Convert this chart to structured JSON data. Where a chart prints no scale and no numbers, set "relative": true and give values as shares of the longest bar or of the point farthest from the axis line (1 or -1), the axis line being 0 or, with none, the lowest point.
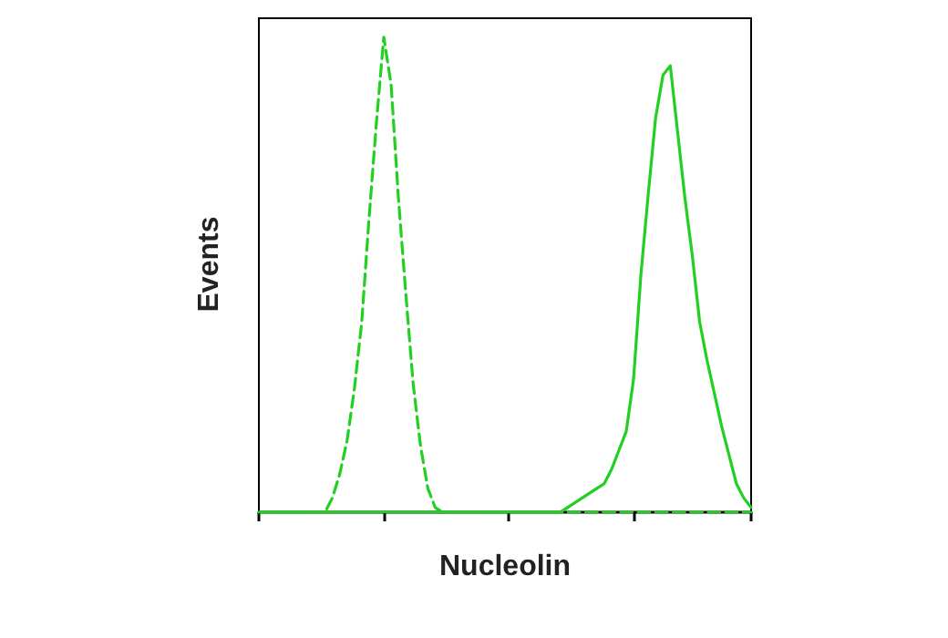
{
  "chart_data": {
    "type": "line",
    "relative": true,
    "xlabel": "Nucleolin",
    "ylabel": "Events",
    "categories": [
      null,
      null,
      null,
      null,
      null,
      null,
      null,
      null,
      null,
      null,
      null,
      null,
      null,
      null,
      null,
      null,
      null,
      null,
      null,
      null,
      null,
      null,
      null,
      null,
      null,
      null,
      null,
      null,
      null,
      null,
      null,
      null,
      null,
      null,
      null,
      null,
      null,
      null,
      null,
      null,
      null,
      null,
      null,
      null,
      null,
      null,
      null,
      null,
      null,
      null,
      null,
      null,
      null,
      null,
      null,
      null,
      null,
      null,
      null,
      null,
      null,
      null,
      null,
      null,
      null,
      null,
      null,
      null
    ],
    "series": [
      {
        "color": "#22d022",
        "line_style": "dashed",
        "values": [
          0,
          0,
          0,
          0,
          0,
          0,
          0,
          0,
          0,
          0,
          0.03,
          0.08,
          0.15,
          0.26,
          0.4,
          0.62,
          0.82,
          1,
          0.9,
          0.66,
          0.46,
          0.27,
          0.14,
          0.05,
          0.01,
          0,
          0,
          0,
          0,
          0,
          0,
          0,
          0,
          0,
          0,
          0,
          0,
          0,
          0,
          0,
          0,
          0,
          0,
          0,
          0,
          0,
          0,
          0,
          0,
          0,
          0,
          0,
          0,
          0,
          0,
          0,
          0,
          0,
          0,
          0,
          0,
          0,
          0,
          0,
          0,
          0,
          0,
          0
        ]
      },
      {
        "color": "#22d022",
        "line_style": "solid",
        "values": [
          0,
          0,
          0,
          0,
          0,
          0,
          0,
          0,
          0,
          0,
          0,
          0,
          0,
          0,
          0,
          0,
          0,
          0,
          0,
          0,
          0,
          0,
          0,
          0,
          0,
          0,
          0,
          0,
          0,
          0,
          0,
          0,
          0,
          0,
          0,
          0,
          0,
          0,
          0,
          0,
          0,
          0,
          0.01,
          0.02,
          0.03,
          0.04,
          0.05,
          0.06,
          0.09,
          0.13,
          0.17,
          0.28,
          0.5,
          0.67,
          0.83,
          0.92,
          0.94,
          0.8,
          0.66,
          0.54,
          0.4,
          0.32,
          0.25,
          0.18,
          0.12,
          0.06,
          0.03,
          0.01
        ]
      }
    ]
  }
}
